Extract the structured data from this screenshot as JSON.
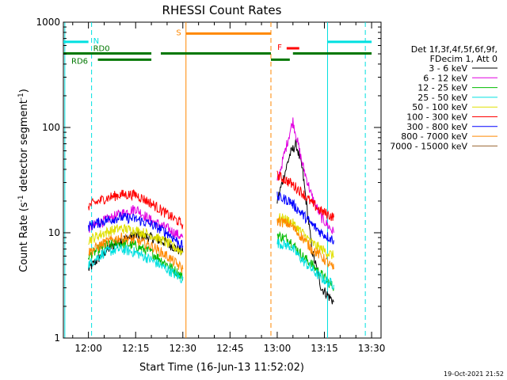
{
  "chart_data": {
    "type": "line",
    "title": "RHESSI Count Rates",
    "xlabel": "Start Time (16-Jun-13 11:52:02)",
    "ylabel_main": "Count Rate (s",
    "ylabel_sup1": "-1",
    "ylabel_mid": " detector segment",
    "ylabel_sup2": "-1",
    "ylabel_end": ")",
    "x_scale": "time",
    "x_range": [
      "11:52:02",
      "13:33:00"
    ],
    "x_ticks": [
      "12:00",
      "12:15",
      "12:30",
      "12:45",
      "13:00",
      "13:15",
      "13:30"
    ],
    "y_scale": "log",
    "ylim": [
      1,
      1000
    ],
    "y_ticks": [
      "1",
      "10",
      "100",
      "1000"
    ],
    "grid": false,
    "timestamp": "19-Oct-2021 21:52",
    "legend": {
      "header1": "Det 1f,3f,4f,5f,6f,9f,",
      "header2": "FDecim 1, Att 0",
      "placement": "right"
    },
    "series": [
      {
        "name": "3 - 6 keV",
        "color": "#000000",
        "points": [
          [
            "12:00",
            4.5
          ],
          [
            "12:05",
            6.5
          ],
          [
            "12:10",
            8.5
          ],
          [
            "12:15",
            9.5
          ],
          [
            "12:20",
            9
          ],
          [
            "12:25",
            8
          ],
          [
            "12:30",
            6.5
          ],
          [
            "13:00",
            20
          ],
          [
            "13:04",
            55
          ],
          [
            "13:06",
            70
          ],
          [
            "13:08",
            40
          ],
          [
            "13:11",
            7
          ],
          [
            "13:14",
            3
          ],
          [
            "13:18",
            2.2
          ]
        ]
      },
      {
        "name": "6 - 12 keV",
        "color": "#e000e0",
        "points": [
          [
            "12:00",
            11
          ],
          [
            "12:05",
            13
          ],
          [
            "12:10",
            15
          ],
          [
            "12:15",
            17
          ],
          [
            "12:20",
            13
          ],
          [
            "12:25",
            11
          ],
          [
            "12:30",
            9
          ],
          [
            "13:00",
            30
          ],
          [
            "13:04",
            90
          ],
          [
            "13:05",
            115
          ],
          [
            "13:08",
            45
          ],
          [
            "13:11",
            22
          ],
          [
            "13:14",
            14
          ],
          [
            "13:18",
            10
          ]
        ]
      },
      {
        "name": "12 - 25 keV",
        "color": "#00bb00",
        "points": [
          [
            "12:00",
            6
          ],
          [
            "12:05",
            7.5
          ],
          [
            "12:10",
            8
          ],
          [
            "12:15",
            7.5
          ],
          [
            "12:20",
            6.5
          ],
          [
            "12:25",
            5
          ],
          [
            "12:30",
            3.8
          ],
          [
            "13:00",
            9.5
          ],
          [
            "13:04",
            8.5
          ],
          [
            "13:08",
            6
          ],
          [
            "13:11",
            5
          ],
          [
            "13:14",
            4
          ],
          [
            "13:18",
            3
          ]
        ]
      },
      {
        "name": "25 - 50 keV",
        "color": "#00e0e0",
        "points": [
          [
            "12:00",
            5
          ],
          [
            "12:05",
            6.5
          ],
          [
            "12:10",
            7
          ],
          [
            "12:15",
            6.5
          ],
          [
            "12:20",
            5.5
          ],
          [
            "12:25",
            4.5
          ],
          [
            "12:30",
            3.6
          ],
          [
            "13:00",
            8
          ],
          [
            "13:04",
            7.5
          ],
          [
            "13:08",
            5.5
          ],
          [
            "13:11",
            4.5
          ],
          [
            "13:14",
            3.7
          ],
          [
            "13:18",
            3.2
          ]
        ]
      },
      {
        "name": "50 - 100 keV",
        "color": "#e0e000",
        "points": [
          [
            "12:00",
            8.5
          ],
          [
            "12:05",
            10
          ],
          [
            "12:10",
            11
          ],
          [
            "12:15",
            10.5
          ],
          [
            "12:20",
            9.5
          ],
          [
            "12:25",
            8
          ],
          [
            "12:30",
            6.5
          ],
          [
            "13:00",
            14
          ],
          [
            "13:04",
            13
          ],
          [
            "13:08",
            10
          ],
          [
            "13:11",
            8
          ],
          [
            "13:14",
            7
          ],
          [
            "13:18",
            6
          ]
        ]
      },
      {
        "name": "100 - 300 keV",
        "color": "#ff0000",
        "points": [
          [
            "12:00",
            18
          ],
          [
            "12:05",
            21
          ],
          [
            "12:10",
            23
          ],
          [
            "12:15",
            23
          ],
          [
            "12:20",
            19
          ],
          [
            "12:25",
            15
          ],
          [
            "12:30",
            12
          ],
          [
            "13:00",
            35
          ],
          [
            "13:04",
            30
          ],
          [
            "13:08",
            24
          ],
          [
            "13:11",
            19
          ],
          [
            "13:14",
            16
          ],
          [
            "13:18",
            14
          ]
        ]
      },
      {
        "name": "300 - 800 keV",
        "color": "#0000ff",
        "points": [
          [
            "12:00",
            11.5
          ],
          [
            "12:05",
            13
          ],
          [
            "12:10",
            14
          ],
          [
            "12:15",
            13.5
          ],
          [
            "12:20",
            12
          ],
          [
            "12:25",
            10
          ],
          [
            "12:30",
            7.5
          ],
          [
            "13:00",
            22
          ],
          [
            "13:04",
            20
          ],
          [
            "13:08",
            15
          ],
          [
            "13:11",
            12
          ],
          [
            "13:14",
            10
          ],
          [
            "13:18",
            8.5
          ]
        ]
      },
      {
        "name": "800 - 7000 keV",
        "color": "#ff8800",
        "points": [
          [
            "12:00",
            6.5
          ],
          [
            "12:05",
            8
          ],
          [
            "12:10",
            9
          ],
          [
            "12:15",
            8.5
          ],
          [
            "12:20",
            7.5
          ],
          [
            "12:25",
            6
          ],
          [
            "12:30",
            4.5
          ],
          [
            "13:00",
            13
          ],
          [
            "13:04",
            12
          ],
          [
            "13:08",
            9
          ],
          [
            "13:11",
            7
          ],
          [
            "13:14",
            6
          ],
          [
            "13:18",
            4.5
          ]
        ]
      },
      {
        "name": "7000 - 15000 keV",
        "color": "#996633",
        "points": []
      }
    ],
    "state_bars": [
      {
        "label": "N",
        "color": "#00e0e0",
        "segments": [
          [
            "11:52:02",
            "12:00"
          ],
          [
            "13:16",
            "13:30"
          ]
        ],
        "value": 650
      },
      {
        "label": "S",
        "color": "#ff8800",
        "segments": [
          [
            "12:31",
            "12:58"
          ]
        ],
        "value": 780
      },
      {
        "label": "F",
        "color": "#ff0000",
        "segments": [
          [
            "13:03",
            "13:07"
          ]
        ],
        "value": 565
      },
      {
        "label": "RD0",
        "color": "#007700",
        "segments": [
          [
            "11:52:02",
            "12:20"
          ],
          [
            "12:23",
            "12:58"
          ],
          [
            "13:05",
            "13:30"
          ]
        ],
        "value": 505
      },
      {
        "label": "RD6",
        "color": "#007700",
        "segments": [
          [
            "12:03",
            "12:20"
          ],
          [
            "12:58",
            "13:04"
          ]
        ],
        "value": 440
      }
    ],
    "vertical_lines": [
      {
        "time": "11:52:30",
        "color": "#00e0e0",
        "style": "solid"
      },
      {
        "time": "12:01",
        "color": "#00e0e0",
        "style": "dashed"
      },
      {
        "time": "12:31",
        "color": "#ff8800",
        "style": "solid"
      },
      {
        "time": "12:58",
        "color": "#ff8800",
        "style": "dashed"
      },
      {
        "time": "13:16",
        "color": "#00e0e0",
        "style": "solid"
      },
      {
        "time": "13:28",
        "color": "#00e0e0",
        "style": "dashed"
      }
    ],
    "gaps": [
      [
        "12:31",
        "12:59"
      ]
    ]
  }
}
